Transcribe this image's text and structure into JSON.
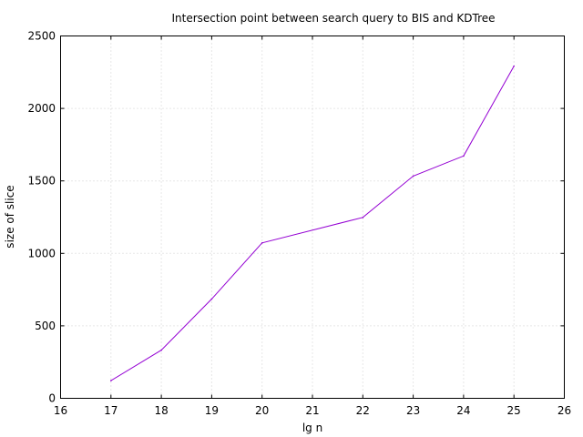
{
  "chart_data": {
    "type": "line",
    "title": "Intersection point between search query to BIS and KDTree",
    "xlabel": "lg n",
    "ylabel": "size of slice",
    "xlim": [
      16,
      26
    ],
    "ylim": [
      0,
      2500
    ],
    "xticks": [
      "16",
      "17",
      "18",
      "19",
      "20",
      "21",
      "22",
      "23",
      "24",
      "25",
      "26"
    ],
    "yticks": [
      "0",
      "500",
      "1000",
      "1500",
      "2000",
      "2500"
    ],
    "grid": true,
    "series": [
      {
        "color": "#9400d3",
        "x": [
          17,
          18,
          19,
          20,
          22,
          23,
          24,
          25
        ],
        "y": [
          122,
          332,
          685,
          1072,
          1248,
          1533,
          1672,
          2292
        ]
      }
    ]
  }
}
